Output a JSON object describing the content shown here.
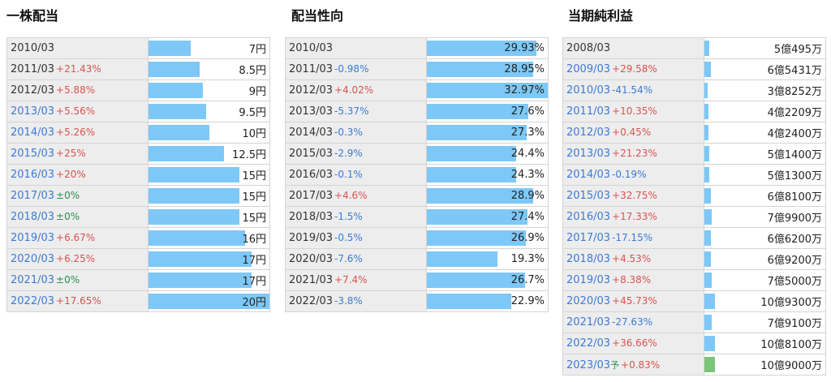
{
  "dividend": {
    "title": "一株配当",
    "rows": [
      {
        "year": "2010/03",
        "change": "",
        "change_type": "none",
        "year_link": false,
        "value": "7円",
        "pct": 0.35
      },
      {
        "year": "2011/03",
        "change": "+21.43%",
        "change_type": "pos",
        "year_link": false,
        "value": "8.5円",
        "pct": 0.425
      },
      {
        "year": "2012/03",
        "change": "+5.88%",
        "change_type": "pos",
        "year_link": false,
        "value": "9円",
        "pct": 0.45
      },
      {
        "year": "2013/03",
        "change": "+5.56%",
        "change_type": "pos",
        "year_link": true,
        "value": "9.5円",
        "pct": 0.475
      },
      {
        "year": "2014/03",
        "change": "+5.26%",
        "change_type": "pos",
        "year_link": true,
        "value": "10円",
        "pct": 0.5
      },
      {
        "year": "2015/03",
        "change": "+25%",
        "change_type": "pos",
        "year_link": true,
        "value": "12.5円",
        "pct": 0.625
      },
      {
        "year": "2016/03",
        "change": "+20%",
        "change_type": "pos",
        "year_link": true,
        "value": "15円",
        "pct": 0.75
      },
      {
        "year": "2017/03",
        "change": "±0%",
        "change_type": "zero",
        "year_link": true,
        "value": "15円",
        "pct": 0.75
      },
      {
        "year": "2018/03",
        "change": "±0%",
        "change_type": "zero",
        "year_link": true,
        "value": "15円",
        "pct": 0.75
      },
      {
        "year": "2019/03",
        "change": "+6.67%",
        "change_type": "pos",
        "year_link": true,
        "value": "16円",
        "pct": 0.8
      },
      {
        "year": "2020/03",
        "change": "+6.25%",
        "change_type": "pos",
        "year_link": true,
        "value": "17円",
        "pct": 0.85
      },
      {
        "year": "2021/03",
        "change": "±0%",
        "change_type": "zero",
        "year_link": true,
        "value": "17円",
        "pct": 0.85
      },
      {
        "year": "2022/03",
        "change": "+17.65%",
        "change_type": "pos",
        "year_link": true,
        "value": "20円",
        "pct": 1.0
      }
    ]
  },
  "payout": {
    "title": "配当性向",
    "rows": [
      {
        "year": "2010/03",
        "change": "",
        "change_type": "none",
        "year_link": false,
        "value": "29.93%",
        "pct": 0.9078
      },
      {
        "year": "2011/03",
        "change": "-0.98%",
        "change_type": "neg",
        "year_link": false,
        "value": "28.95%",
        "pct": 0.878
      },
      {
        "year": "2012/03",
        "change": "+4.02%",
        "change_type": "pos",
        "year_link": false,
        "value": "32.97%",
        "pct": 1.0
      },
      {
        "year": "2013/03",
        "change": "-5.37%",
        "change_type": "neg",
        "year_link": false,
        "value": "27.6%",
        "pct": 0.837
      },
      {
        "year": "2014/03",
        "change": "-0.3%",
        "change_type": "neg",
        "year_link": false,
        "value": "27.3%",
        "pct": 0.828
      },
      {
        "year": "2015/03",
        "change": "-2.9%",
        "change_type": "neg",
        "year_link": false,
        "value": "24.4%",
        "pct": 0.74
      },
      {
        "year": "2016/03",
        "change": "-0.1%",
        "change_type": "neg",
        "year_link": false,
        "value": "24.3%",
        "pct": 0.737
      },
      {
        "year": "2017/03",
        "change": "+4.6%",
        "change_type": "pos",
        "year_link": false,
        "value": "28.9%",
        "pct": 0.877
      },
      {
        "year": "2018/03",
        "change": "-1.5%",
        "change_type": "neg",
        "year_link": false,
        "value": "27.4%",
        "pct": 0.831
      },
      {
        "year": "2019/03",
        "change": "-0.5%",
        "change_type": "neg",
        "year_link": false,
        "value": "26.9%",
        "pct": 0.816
      },
      {
        "year": "2020/03",
        "change": "-7.6%",
        "change_type": "neg",
        "year_link": false,
        "value": "19.3%",
        "pct": 0.585
      },
      {
        "year": "2021/03",
        "change": "+7.4%",
        "change_type": "pos",
        "year_link": false,
        "value": "26.7%",
        "pct": 0.81
      },
      {
        "year": "2022/03",
        "change": "-3.8%",
        "change_type": "neg",
        "year_link": false,
        "value": "22.9%",
        "pct": 0.695
      }
    ]
  },
  "net_income": {
    "title": "当期純利益",
    "rows": [
      {
        "year": "2008/03",
        "change": "",
        "change_type": "none",
        "year_link": false,
        "forecast": "",
        "value": "5億495万",
        "pct": 0.04,
        "green": false
      },
      {
        "year": "2009/03",
        "change": "+29.58%",
        "change_type": "pos",
        "year_link": true,
        "forecast": "",
        "value": "6億5431万",
        "pct": 0.052,
        "green": false
      },
      {
        "year": "2010/03",
        "change": "-41.54%",
        "change_type": "neg",
        "year_link": true,
        "forecast": "",
        "value": "3億8252万",
        "pct": 0.03,
        "green": false
      },
      {
        "year": "2011/03",
        "change": "+10.35%",
        "change_type": "pos",
        "year_link": true,
        "forecast": "",
        "value": "4億2209万",
        "pct": 0.033,
        "green": false
      },
      {
        "year": "2012/03",
        "change": "+0.45%",
        "change_type": "pos",
        "year_link": true,
        "forecast": "",
        "value": "4億2400万",
        "pct": 0.034,
        "green": false
      },
      {
        "year": "2013/03",
        "change": "+21.23%",
        "change_type": "pos",
        "year_link": true,
        "forecast": "",
        "value": "5億1400万",
        "pct": 0.041,
        "green": false
      },
      {
        "year": "2014/03",
        "change": "-0.19%",
        "change_type": "neg",
        "year_link": true,
        "forecast": "",
        "value": "5億1300万",
        "pct": 0.041,
        "green": false
      },
      {
        "year": "2015/03",
        "change": "+32.75%",
        "change_type": "pos",
        "year_link": true,
        "forecast": "",
        "value": "6億8100万",
        "pct": 0.054,
        "green": false
      },
      {
        "year": "2016/03",
        "change": "+17.33%",
        "change_type": "pos",
        "year_link": true,
        "forecast": "",
        "value": "7億9900万",
        "pct": 0.063,
        "green": false
      },
      {
        "year": "2017/03",
        "change": "-17.15%",
        "change_type": "neg",
        "year_link": true,
        "forecast": "",
        "value": "6億6200万",
        "pct": 0.052,
        "green": false
      },
      {
        "year": "2018/03",
        "change": "+4.53%",
        "change_type": "pos",
        "year_link": true,
        "forecast": "",
        "value": "6億9200万",
        "pct": 0.055,
        "green": false
      },
      {
        "year": "2019/03",
        "change": "+8.38%",
        "change_type": "pos",
        "year_link": true,
        "forecast": "",
        "value": "7億5000万",
        "pct": 0.059,
        "green": false
      },
      {
        "year": "2020/03",
        "change": "+45.73%",
        "change_type": "pos",
        "year_link": true,
        "forecast": "",
        "value": "10億9300万",
        "pct": 0.087,
        "green": false
      },
      {
        "year": "2021/03",
        "change": "-27.63%",
        "change_type": "neg",
        "year_link": true,
        "forecast": "",
        "value": "7億9100万",
        "pct": 0.063,
        "green": false
      },
      {
        "year": "2022/03",
        "change": "+36.66%",
        "change_type": "pos",
        "year_link": true,
        "forecast": "",
        "value": "10億8100万",
        "pct": 0.086,
        "green": false
      },
      {
        "year": "2023/03",
        "change": "+0.83%",
        "change_type": "pos",
        "year_link": true,
        "forecast": "予",
        "value": "10億9000万",
        "pct": 0.087,
        "green": true
      }
    ]
  },
  "colors": {
    "bar": "#7dc8f7",
    "bar_forecast": "#7cc47a",
    "pos": "#d9534f",
    "neg": "#3a7bd5",
    "zero": "#2e8b57",
    "link": "#3a7bd5"
  }
}
